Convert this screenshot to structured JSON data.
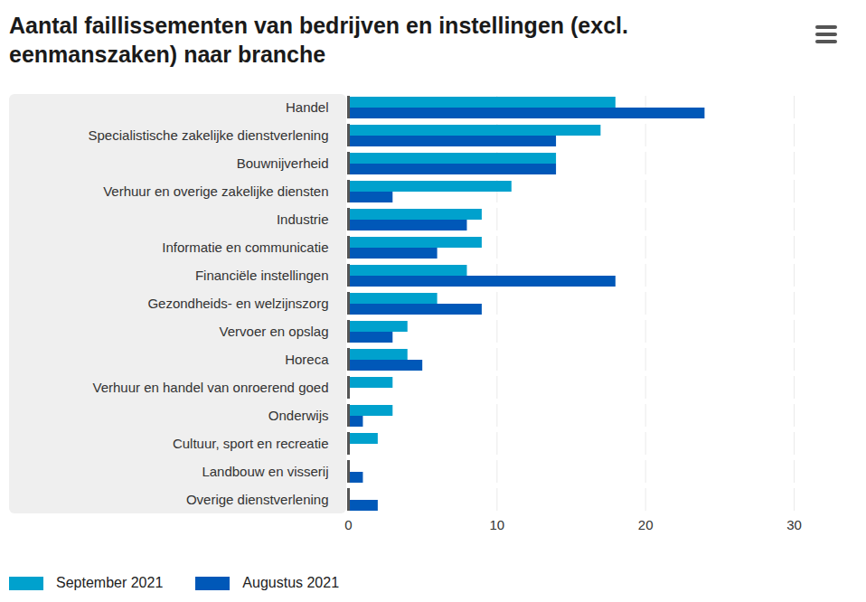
{
  "chart_data": {
    "type": "bar",
    "orientation": "horizontal",
    "title": "Aantal faillissementen van bedrijven en instellingen (excl. eenmanszaken) naar branche",
    "categories": [
      "Handel",
      "Specialistische zakelijke dienstverlening",
      "Bouwnijverheid",
      "Verhuur en overige zakelijke diensten",
      "Industrie",
      "Informatie en communicatie",
      "Financiële instellingen",
      "Gezondheids- en welzijnszorg",
      "Vervoer en opslag",
      "Horeca",
      "Verhuur en handel van onroerend goed",
      "Onderwijs",
      "Cultuur, sport en recreatie",
      "Landbouw en visserij",
      "Overige dienstverlening"
    ],
    "series": [
      {
        "name": "September 2021",
        "color": "#00a1cd",
        "values": [
          18,
          17,
          14,
          11,
          9,
          9,
          8,
          6,
          4,
          4,
          3,
          3,
          2,
          0,
          0
        ]
      },
      {
        "name": "Augustus 2021",
        "color": "#0058b8",
        "values": [
          24,
          14,
          14,
          3,
          8,
          6,
          18,
          9,
          3,
          5,
          0,
          1,
          0,
          1,
          2
        ]
      }
    ],
    "xlim": [
      0,
      30
    ],
    "xticks": [
      0,
      10,
      20,
      30
    ],
    "grid": true,
    "legend": "bottom"
  }
}
